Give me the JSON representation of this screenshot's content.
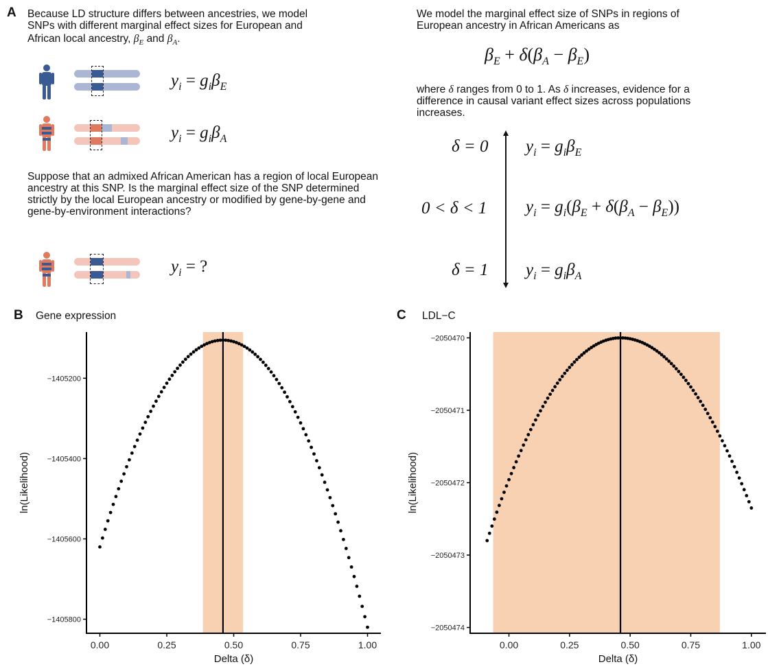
{
  "panelA": {
    "label": "A",
    "intro_line1": "Because LD structure differs between ancestries, we model",
    "intro_line2": "SNPs with different marginal effect sizes for European and",
    "intro_line3_prefix": "African local ancestry,",
    "intro_and": "and",
    "eq_european": "y_i = g_i β_E",
    "eq_african": "y_i = g_i β_A",
    "question": "Suppose that an admixed African American has a region of local European ancestry at this SNP. Is the marginal effect size of the SNP determined strictly by the local European ancestry or modified by gene-by-gene and gene-by-environment interactions?",
    "eq_unknown": "y_i = ?",
    "right_intro_line1": "We model the marginal effect size of SNPs in regions of",
    "right_intro_line2": "European ancestry in African Americans as",
    "where_text_1": "where",
    "where_text_2": "ranges from 0 to 1. As",
    "where_text_3": "increases, evidence for a",
    "where_line2": "difference in causal variant effect sizes across populations",
    "where_line3": "increases.",
    "cond_0": "δ = 0",
    "cond_mid": "0 < δ < 1",
    "cond_1": "δ = 1",
    "colors": {
      "european_blue": "#3a5a94",
      "european_light": "#aab6d3",
      "african_orange": "#e07a5f",
      "african_light": "#f4c6bb"
    }
  },
  "chart_data": [
    {
      "panel_label": "B",
      "title": "Gene expression",
      "type": "scatter",
      "xlabel": "Delta (δ)",
      "ylabel": "ln(Likelihood)",
      "xlim": [
        -0.05,
        1.05
      ],
      "ylim": [
        -1405835,
        -1405085
      ],
      "xticks": [
        0.0,
        0.25,
        0.5,
        0.75,
        1.0
      ],
      "xtick_labels": [
        "0.00",
        "0.25",
        "0.50",
        "0.75",
        "1.00"
      ],
      "yticks": [
        -1405200,
        -1405400,
        -1405600,
        -1405800
      ],
      "ytick_labels": [
        "−1405200",
        "−1405400",
        "−1405600",
        "−1405800"
      ],
      "curve": {
        "x_min": 0.0,
        "x_max": 1.0,
        "peak_x": 0.46,
        "peak_y": -1405105,
        "y_at_x_min": -1405620,
        "y_at_x_max": -1405820,
        "n_points": 101
      },
      "max_line_x": 0.46,
      "ci": [
        0.385,
        0.535
      ],
      "ci_color": "#f8d1b3"
    },
    {
      "panel_label": "C",
      "title": "LDL−C",
      "type": "scatter",
      "xlabel": "Delta (δ)",
      "ylabel": "ln(Likelihood)",
      "xlim": [
        -0.16,
        1.06
      ],
      "ylim": [
        -2050474.08,
        -2050469.92
      ],
      "xticks": [
        0.0,
        0.25,
        0.5,
        0.75,
        1.0
      ],
      "xtick_labels": [
        "0.00",
        "0.25",
        "0.50",
        "0.75",
        "1.00"
      ],
      "yticks": [
        -2050470,
        -2050471,
        -2050472,
        -2050473,
        -2050474
      ],
      "ytick_labels": [
        "−2050470",
        "−2050471",
        "−2050472",
        "−2050473",
        "−2050474"
      ],
      "curve": {
        "x_min": -0.09,
        "x_max": 1.0,
        "peak_x": 0.46,
        "peak_y": -2050470.0,
        "y_at_x_min": -2050472.8,
        "y_at_x_max": -2050472.35,
        "n_points": 110
      },
      "max_line_x": 0.46,
      "ci": [
        -0.065,
        0.87
      ],
      "ci_color": "#f8d1b3"
    }
  ]
}
